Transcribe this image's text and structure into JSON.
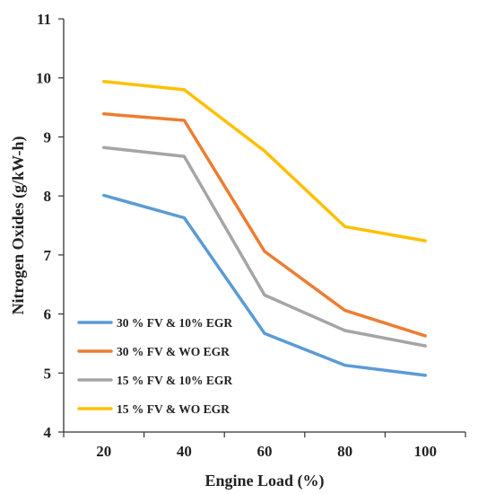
{
  "chart_data": {
    "type": "line",
    "title": "",
    "xlabel": "Engine Load (%)",
    "ylabel": "Nitrogen Oxides (g/kW-h)",
    "x": [
      20,
      40,
      60,
      80,
      100
    ],
    "x_tick_labels": [
      "20",
      "40",
      "60",
      "80",
      "100"
    ],
    "ylim": [
      4,
      11
    ],
    "y_tick_labels": [
      "4",
      "5",
      "6",
      "7",
      "8",
      "9",
      "10",
      "11"
    ],
    "grid": false,
    "legend_position": "bottom-left",
    "series": [
      {
        "name": "30 % FV & 10% EGR",
        "color": "#5B9BD5",
        "values": [
          8.01,
          7.63,
          5.67,
          5.13,
          4.96
        ]
      },
      {
        "name": "30 % FV & WO EGR",
        "color": "#ED7D31",
        "values": [
          9.39,
          9.28,
          7.06,
          6.06,
          5.63
        ]
      },
      {
        "name": "15 % FV & 10% EGR",
        "color": "#A5A5A5",
        "values": [
          8.82,
          8.67,
          6.32,
          5.72,
          5.46
        ]
      },
      {
        "name": "15 % FV & WO EGR",
        "color": "#FFC000",
        "values": [
          9.94,
          9.8,
          8.76,
          7.48,
          7.24
        ]
      }
    ]
  }
}
